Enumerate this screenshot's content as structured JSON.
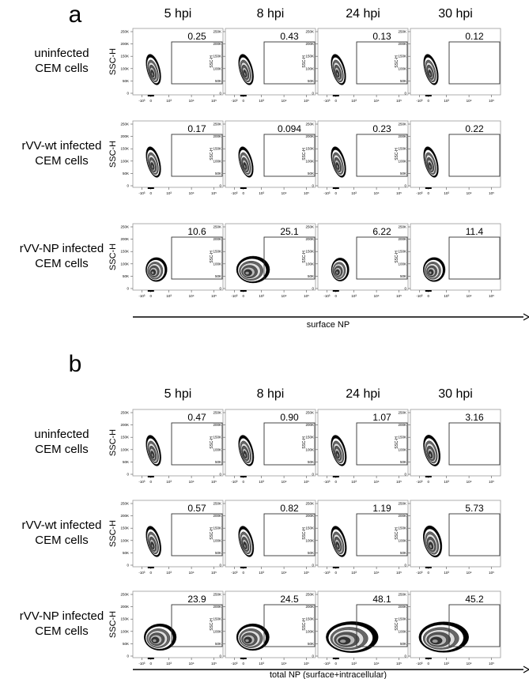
{
  "chart_data": [
    {
      "panel": "a",
      "type": "contour",
      "columns": [
        "5 hpi",
        "8 hpi",
        "24 hpi",
        "30 hpi"
      ],
      "rows": [
        {
          "label": [
            "uninfected",
            "CEM cells"
          ],
          "gate_values": [
            "0.25",
            "0.43",
            "0.13",
            "0.12"
          ]
        },
        {
          "label": [
            "rVV-wt infected",
            "CEM cells"
          ],
          "gate_values": [
            "0.17",
            "0.094",
            "0.23",
            "0.22"
          ]
        },
        {
          "label": [
            "rVV-NP infected",
            "CEM cells"
          ],
          "gate_values": [
            "10.6",
            "25.1",
            "6.22",
            "11.4"
          ]
        }
      ],
      "ylabel": "SSC-H",
      "xlabel": "surface NP",
      "yticks": [
        "0",
        "50K",
        "100K",
        "150K",
        "200K",
        "250K"
      ],
      "xticks": [
        "-10³",
        "0",
        "10³",
        "10⁴",
        "10⁵"
      ]
    },
    {
      "panel": "b",
      "type": "contour",
      "columns": [
        "5 hpi",
        "8 hpi",
        "24 hpi",
        "30 hpi"
      ],
      "rows": [
        {
          "label": [
            "uninfected",
            "CEM cells"
          ],
          "gate_values": [
            "0.47",
            "0.90",
            "1.07",
            "3.16"
          ]
        },
        {
          "label": [
            "rVV-wt infected",
            "CEM cells"
          ],
          "gate_values": [
            "0.57",
            "0.82",
            "1.19",
            "5.73"
          ]
        },
        {
          "label": [
            "rVV-NP infected",
            "CEM cells"
          ],
          "gate_values": [
            "23.9",
            "24.5",
            "48.1",
            "45.2"
          ]
        }
      ],
      "ylabel": "SSC-H",
      "xlabel": "total NP (surface+intracellular)",
      "yticks": [
        "0",
        "50K",
        "100K",
        "150K",
        "200K",
        "250K"
      ],
      "xticks": [
        "-10³",
        "0",
        "10³",
        "10⁴",
        "10⁵"
      ]
    }
  ]
}
